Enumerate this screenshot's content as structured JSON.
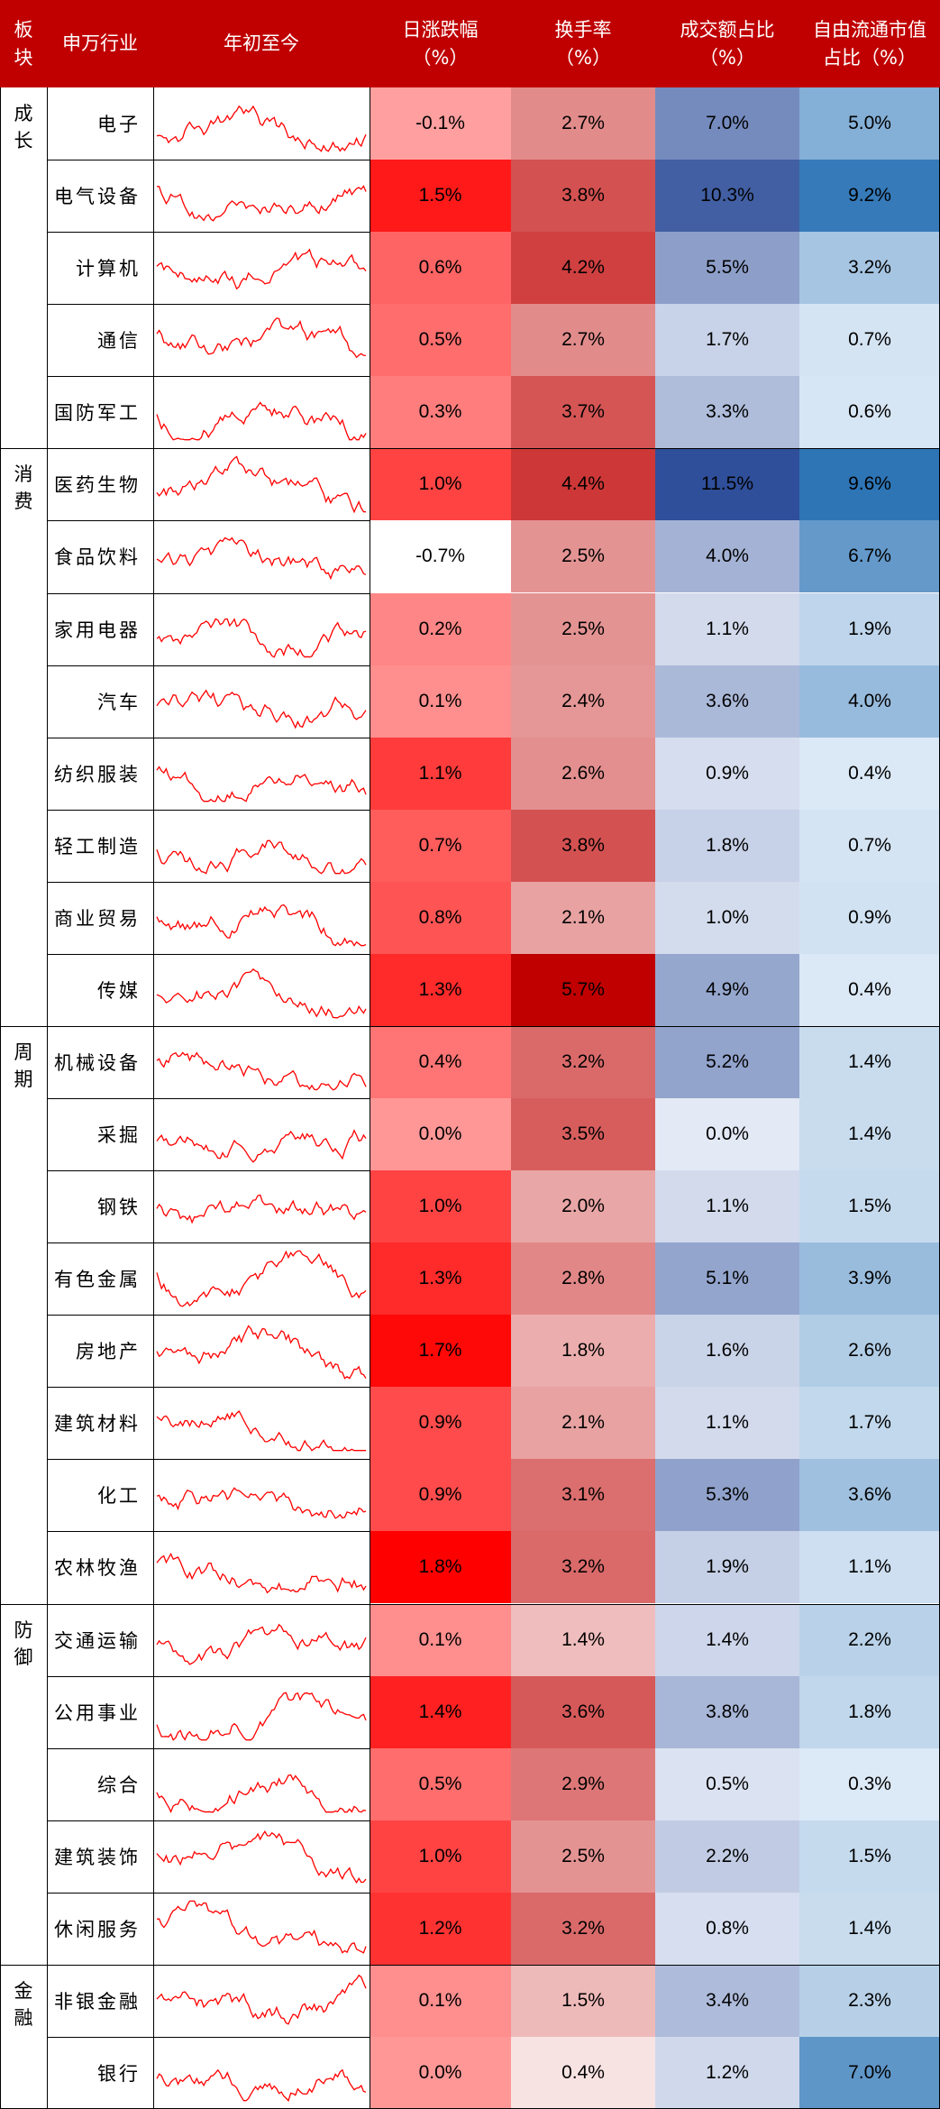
{
  "header": {
    "sector": "板块",
    "industry": "申万行业",
    "ytd": "年初至今",
    "daily_change": [
      "日涨跌幅",
      "（%）"
    ],
    "turnover": [
      "换手率",
      "（%）"
    ],
    "volume_share": [
      "成交额占比",
      "（%）"
    ],
    "float_share": [
      "自由流通市值",
      "占比（%）"
    ]
  },
  "groups": [
    {
      "label": "成长",
      "rows": [
        {
          "name": "电子",
          "change": "-0.1%",
          "turnover": "2.7%",
          "volume": "7.0%",
          "float": "5.0%",
          "v": [
            -0.1,
            2.7,
            7.0,
            5.0
          ]
        },
        {
          "name": "电气设备",
          "change": "1.5%",
          "turnover": "3.8%",
          "volume": "10.3%",
          "float": "9.2%",
          "v": [
            1.5,
            3.8,
            10.3,
            9.2
          ]
        },
        {
          "name": "计算机",
          "change": "0.6%",
          "turnover": "4.2%",
          "volume": "5.5%",
          "float": "3.2%",
          "v": [
            0.6,
            4.2,
            5.5,
            3.2
          ]
        },
        {
          "name": "通信",
          "change": "0.5%",
          "turnover": "2.7%",
          "volume": "1.7%",
          "float": "0.7%",
          "v": [
            0.5,
            2.7,
            1.7,
            0.7
          ]
        },
        {
          "name": "国防军工",
          "change": "0.3%",
          "turnover": "3.7%",
          "volume": "3.3%",
          "float": "0.6%",
          "v": [
            0.3,
            3.7,
            3.3,
            0.6
          ]
        }
      ]
    },
    {
      "label": "消费",
      "rows": [
        {
          "name": "医药生物",
          "change": "1.0%",
          "turnover": "4.4%",
          "volume": "11.5%",
          "float": "9.6%",
          "v": [
            1.0,
            4.4,
            11.5,
            9.6
          ]
        },
        {
          "name": "食品饮料",
          "change": "-0.7%",
          "turnover": "2.5%",
          "volume": "4.0%",
          "float": "6.7%",
          "v": [
            -0.7,
            2.5,
            4.0,
            6.7
          ]
        },
        {
          "name": "家用电器",
          "change": "0.2%",
          "turnover": "2.5%",
          "volume": "1.1%",
          "float": "1.9%",
          "v": [
            0.2,
            2.5,
            1.1,
            1.9
          ]
        },
        {
          "name": "汽车",
          "change": "0.1%",
          "turnover": "2.4%",
          "volume": "3.6%",
          "float": "4.0%",
          "v": [
            0.1,
            2.4,
            3.6,
            4.0
          ]
        },
        {
          "name": "纺织服装",
          "change": "1.1%",
          "turnover": "2.6%",
          "volume": "0.9%",
          "float": "0.4%",
          "v": [
            1.1,
            2.6,
            0.9,
            0.4
          ]
        },
        {
          "name": "轻工制造",
          "change": "0.7%",
          "turnover": "3.8%",
          "volume": "1.8%",
          "float": "0.7%",
          "v": [
            0.7,
            3.8,
            1.8,
            0.7
          ]
        },
        {
          "name": "商业贸易",
          "change": "0.8%",
          "turnover": "2.1%",
          "volume": "1.0%",
          "float": "0.9%",
          "v": [
            0.8,
            2.1,
            1.0,
            0.9
          ]
        },
        {
          "name": "传媒",
          "change": "1.3%",
          "turnover": "5.7%",
          "volume": "4.9%",
          "float": "0.4%",
          "v": [
            1.3,
            5.7,
            4.9,
            0.4
          ]
        }
      ]
    },
    {
      "label": "周期",
      "rows": [
        {
          "name": "机械设备",
          "change": "0.4%",
          "turnover": "3.2%",
          "volume": "5.2%",
          "float": "1.4%",
          "v": [
            0.4,
            3.2,
            5.2,
            1.4
          ]
        },
        {
          "name": "采掘",
          "change": "0.0%",
          "turnover": "3.5%",
          "volume": "0.0%",
          "float": "1.4%",
          "v": [
            0.0,
            3.5,
            0.0,
            1.4
          ]
        },
        {
          "name": "钢铁",
          "change": "1.0%",
          "turnover": "2.0%",
          "volume": "1.1%",
          "float": "1.5%",
          "v": [
            1.0,
            2.0,
            1.1,
            1.5
          ]
        },
        {
          "name": "有色金属",
          "change": "1.3%",
          "turnover": "2.8%",
          "volume": "5.1%",
          "float": "3.9%",
          "v": [
            1.3,
            2.8,
            5.1,
            3.9
          ]
        },
        {
          "name": "房地产",
          "change": "1.7%",
          "turnover": "1.8%",
          "volume": "1.6%",
          "float": "2.6%",
          "v": [
            1.7,
            1.8,
            1.6,
            2.6
          ]
        },
        {
          "name": "建筑材料",
          "change": "0.9%",
          "turnover": "2.1%",
          "volume": "1.1%",
          "float": "1.7%",
          "v": [
            0.9,
            2.1,
            1.1,
            1.7
          ]
        },
        {
          "name": "化工",
          "change": "0.9%",
          "turnover": "3.1%",
          "volume": "5.3%",
          "float": "3.6%",
          "v": [
            0.9,
            3.1,
            5.3,
            3.6
          ]
        },
        {
          "name": "农林牧渔",
          "change": "1.8%",
          "turnover": "3.2%",
          "volume": "1.9%",
          "float": "1.1%",
          "v": [
            1.8,
            3.2,
            1.9,
            1.1
          ]
        }
      ]
    },
    {
      "label": "防御",
      "rows": [
        {
          "name": "交通运输",
          "change": "0.1%",
          "turnover": "1.4%",
          "volume": "1.4%",
          "float": "2.2%",
          "v": [
            0.1,
            1.4,
            1.4,
            2.2
          ]
        },
        {
          "name": "公用事业",
          "change": "1.4%",
          "turnover": "3.6%",
          "volume": "3.8%",
          "float": "1.8%",
          "v": [
            1.4,
            3.6,
            3.8,
            1.8
          ]
        },
        {
          "name": "综合",
          "change": "0.5%",
          "turnover": "2.9%",
          "volume": "0.5%",
          "float": "0.3%",
          "v": [
            0.5,
            2.9,
            0.5,
            0.3
          ]
        },
        {
          "name": "建筑装饰",
          "change": "1.0%",
          "turnover": "2.5%",
          "volume": "2.2%",
          "float": "1.5%",
          "v": [
            1.0,
            2.5,
            2.2,
            1.5
          ]
        },
        {
          "name": "休闲服务",
          "change": "1.2%",
          "turnover": "3.2%",
          "volume": "0.8%",
          "float": "1.4%",
          "v": [
            1.2,
            3.2,
            0.8,
            1.4
          ]
        }
      ]
    },
    {
      "label": "金融",
      "rows": [
        {
          "name": "非银金融",
          "change": "0.1%",
          "turnover": "1.5%",
          "volume": "3.4%",
          "float": "2.3%",
          "v": [
            0.1,
            1.5,
            3.4,
            2.3
          ]
        },
        {
          "name": "银行",
          "change": "0.0%",
          "turnover": "0.4%",
          "volume": "1.2%",
          "float": "7.0%",
          "v": [
            0.0,
            0.4,
            1.2,
            7.0
          ]
        }
      ]
    }
  ],
  "colors": {
    "header_bg": "#c00000",
    "spark_line": "#ff0000",
    "change_hot": "#ff0000",
    "turnover_hot": "#c00000",
    "volume_dark": "#2f4f9a",
    "float_dark": "#2e75b6"
  }
}
